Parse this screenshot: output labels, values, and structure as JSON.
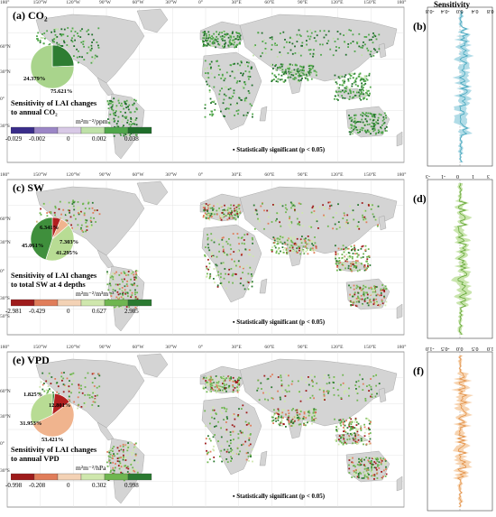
{
  "header": {
    "sensitivity_title": "Sensitivity"
  },
  "lon_ticks": [
    "180°",
    "150°W",
    "120°W",
    "90°W",
    "60°W",
    "30°W",
    "0°",
    "30°E",
    "60°E",
    "90°E",
    "120°E",
    "150°E",
    "180°"
  ],
  "lat_ticks": [
    "60°N",
    "30°N",
    "0°",
    "30°S"
  ],
  "lat_ticks_sw": [
    "60°N",
    "30°N",
    "0°",
    "30°S",
    "50°S"
  ],
  "panels": [
    {
      "label": "(a) CO₂",
      "caption_line1": "Sensitivity of LAI changes",
      "caption_line2": "to annual CO₂",
      "unit": "m²m⁻²/ppm",
      "colorbar_values": [
        "-0.029",
        "-0.002",
        "0",
        "0.002",
        "0.038"
      ],
      "colorbar_colors": [
        "#3a2d8a",
        "#9b86c6",
        "#d8c9e6",
        "#bfe1a8",
        "#4fa64a",
        "#1f6e2a"
      ],
      "pie": [
        {
          "label": "24.379%",
          "value": 24.379,
          "color": "#2e7d32"
        },
        {
          "label": "75.621%",
          "value": 75.621,
          "color": "#a9d48c"
        }
      ],
      "significance": "Statistically significant (p < 0.05)"
    },
    {
      "label": "(c) SW",
      "caption_line1": "Sensitivity of LAI changes",
      "caption_line2": "to total SW at 4 depths",
      "unit": "m²m⁻²/m³m⁻³",
      "colorbar_values": [
        "-2.981",
        "-0.429",
        "0",
        "0.627",
        "2.985"
      ],
      "colorbar_colors": [
        "#9e1b1b",
        "#e07d5a",
        "#f3d2b5",
        "#cfe7ad",
        "#6fb650",
        "#2b7a31"
      ],
      "pie": [
        {
          "label": "6.341%",
          "value": 6.341,
          "color": "#b22020"
        },
        {
          "label": "7.303%",
          "value": 7.303,
          "color": "#f0b48e"
        },
        {
          "label": "41.295%",
          "value": 41.295,
          "color": "#b8dc94"
        },
        {
          "label": "45.061%",
          "value": 45.061,
          "color": "#3f8f3c"
        }
      ],
      "significance": "Statistically significant (p < 0.05)"
    },
    {
      "label": "(e) VPD",
      "caption_line1": "Sensitivity of LAI changes",
      "caption_line2": "to annual VPD",
      "unit": "m²m⁻²/hPa",
      "colorbar_values": [
        "-0.998",
        "-0.208",
        "0",
        "0.302",
        "0.998"
      ],
      "colorbar_colors": [
        "#9e1b1b",
        "#e07d5a",
        "#f3d2b5",
        "#cfe7ad",
        "#6fb650",
        "#2b7a31"
      ],
      "pie": [
        {
          "label": "1.825%",
          "value": 1.825,
          "color": "#3f8f3c"
        },
        {
          "label": "12.801%",
          "value": 12.801,
          "color": "#b22020"
        },
        {
          "label": "53.421%",
          "value": 53.421,
          "color": "#f0b48e"
        },
        {
          "label": "31.953%",
          "value": 31.953,
          "color": "#b8dc94"
        }
      ],
      "significance": "Statistically significant (p < 0.05)"
    }
  ],
  "side_panels": [
    {
      "label": "(b)",
      "x_ticks": [
        "-0.8",
        "-0.4",
        "0.0",
        "0.4",
        "0.8"
      ],
      "color": "#3aa0b8",
      "fill": "#a8d8e4"
    },
    {
      "label": "(d)",
      "x_ticks": [
        "-3",
        "-1",
        "0",
        "1",
        "3"
      ],
      "color": "#5aa02c",
      "fill": "#c3e2a4"
    },
    {
      "label": "(f)",
      "x_ticks": [
        "-1.0",
        "-0.5",
        "0.0",
        "0.5",
        "1.0"
      ],
      "color": "#e08a3c",
      "fill": "#f6cfa8"
    }
  ]
}
